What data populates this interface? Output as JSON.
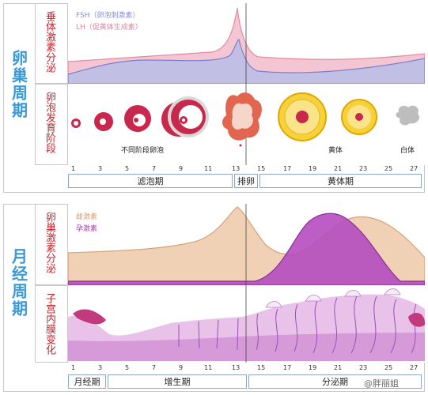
{
  "ovarian_cycle": {
    "section_title": "卵巢周期",
    "row1_label": "垂体激素分泌",
    "row2_label": "卵泡发育阶段",
    "legend_fsh": "FSH（卵泡刺激素）",
    "legend_lh": "LH（促黄体生成素）",
    "label_follicles": "不同阶段卵泡",
    "label_corpus_luteum": "黄体",
    "label_corpus_albicans": "白体",
    "ticks": [
      "1",
      "3",
      "5",
      "7",
      "9",
      "11",
      "13",
      "15",
      "17",
      "19",
      "21",
      "23",
      "25",
      "27"
    ],
    "phases": [
      "滤泡期",
      "排卵",
      "黄体期"
    ]
  },
  "menstrual_cycle": {
    "section_title": "月经周期",
    "row1_label": "卵巢激素分泌",
    "row2_label": "子宫内膜变化",
    "legend_estrogen": "雌激素",
    "legend_progesterone": "孕激素",
    "ticks": [
      "1",
      "3",
      "5",
      "7",
      "9",
      "11",
      "13",
      "15",
      "17",
      "19",
      "21",
      "23",
      "25",
      "27"
    ],
    "phases": [
      "月经期",
      "增生期",
      "分泌期"
    ]
  },
  "watermark": "@胖丽姐",
  "colors": {
    "accent_blue": "#3a9ad6",
    "label_red": "#c0272d",
    "fsh": "#8b8fd8",
    "lh": "#e8a0b4",
    "estrogen": "#f0c9a8",
    "progesterone": "#a63fb0"
  }
}
